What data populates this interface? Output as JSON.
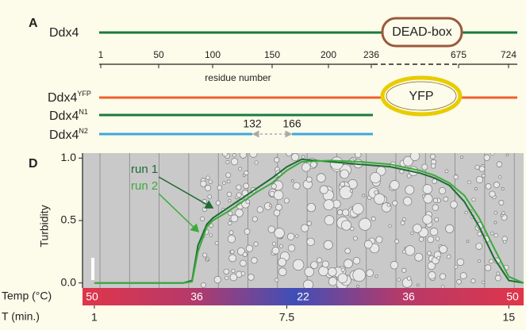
{
  "panel_a": {
    "label": "A",
    "constructs": [
      {
        "name": "Ddx4",
        "domain": "DEAD-box"
      },
      {
        "name": "Ddx4",
        "superscript": "YFP",
        "domain": "YFP"
      },
      {
        "name": "Ddx4",
        "superscript": "N1"
      },
      {
        "name": "Ddx4",
        "superscript": "N2",
        "gap_start": "132",
        "gap_end": "166"
      }
    ],
    "residue_ticks": [
      "1",
      "50",
      "100",
      "150",
      "200",
      "236",
      "675",
      "724"
    ],
    "residue_axis_label": "residue number"
  },
  "panel_d": {
    "label": "D",
    "temp_label": "Temp (°C)",
    "temps": [
      "50",
      "36",
      "22",
      "36",
      "50"
    ],
    "time_label": "T (min.)"
  },
  "chart_data": {
    "type": "line",
    "y_label": "Turbidity",
    "x": [
      1,
      2,
      3,
      4,
      4.3,
      4.5,
      4.8,
      5,
      5.5,
      6,
      6.5,
      7,
      7.5,
      8,
      9,
      10,
      11,
      12,
      12.5,
      13,
      13.5,
      14,
      14.5,
      15,
      15.5
    ],
    "series": [
      {
        "name": "run 1",
        "color": "#1e6b35",
        "values": [
          0,
          0,
          0,
          0,
          0.02,
          0.3,
          0.47,
          0.52,
          0.6,
          0.68,
          0.76,
          0.84,
          0.93,
          0.99,
          0.97,
          0.95,
          0.93,
          0.88,
          0.84,
          0.78,
          0.65,
          0.45,
          0.2,
          0.02,
          0
        ]
      },
      {
        "name": "run 2",
        "color": "#3caa3c",
        "values": [
          0,
          0,
          0,
          0,
          0.01,
          0.25,
          0.45,
          0.5,
          0.57,
          0.65,
          0.73,
          0.8,
          0.9,
          0.97,
          0.98,
          0.97,
          0.95,
          0.9,
          0.86,
          0.8,
          0.7,
          0.52,
          0.28,
          0.05,
          0
        ]
      }
    ],
    "xlim": [
      0.6,
      15.5
    ],
    "ylim": [
      -0.04,
      1.04
    ],
    "yticks": [
      {
        "value": 0,
        "label": "0.0"
      },
      {
        "value": 0.5,
        "label": "0.5"
      },
      {
        "value": 1,
        "label": "1.0"
      }
    ],
    "xticks": [
      1,
      7.5,
      15
    ]
  }
}
